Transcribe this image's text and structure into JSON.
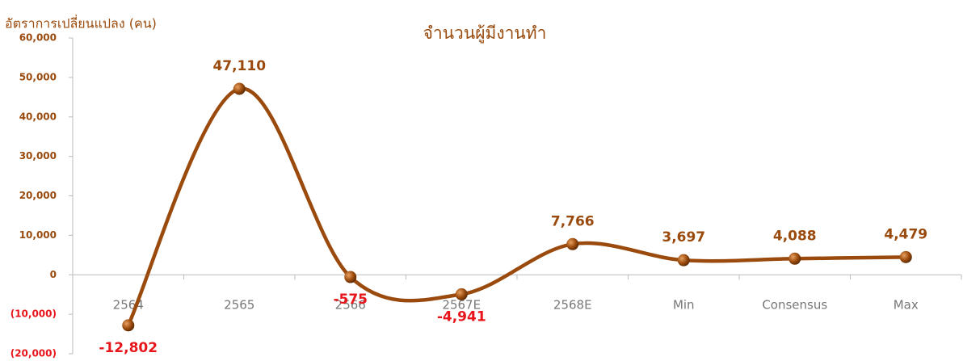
{
  "chart_data": {
    "type": "line",
    "title": "จำนวนผู้มีงานทำ",
    "y_label": "อัตราการเปลี่ยนแปลง (คน)",
    "categories": [
      "2564",
      "2565",
      "2566",
      "2567E",
      "2568E",
      "Min",
      "Consensus",
      "Max"
    ],
    "values": [
      -12802,
      47110,
      -575,
      -4941,
      7766,
      3697,
      4088,
      4479
    ],
    "value_labels": [
      "-12,802",
      "47,110",
      "-575",
      "-4,941",
      "7,766",
      "3,697",
      "4,088",
      "4,479"
    ],
    "color": "#9a4a0c",
    "negative_color": "#e8161b",
    "ylim": [
      -20000,
      60000
    ],
    "yticks": [
      {
        "value": -20000,
        "label": "(20,000)"
      },
      {
        "value": -10000,
        "label": "(10,000)"
      },
      0,
      {
        "value": 10000,
        "label": "10,000"
      },
      {
        "value": 20000,
        "label": "20,000"
      },
      {
        "value": 30000,
        "label": "30,000"
      },
      {
        "value": 40000,
        "label": "40,000"
      },
      {
        "value": 50000,
        "label": "50,000"
      },
      {
        "value": 60000,
        "label": "60,000"
      }
    ],
    "grid": false,
    "smooth": true
  }
}
